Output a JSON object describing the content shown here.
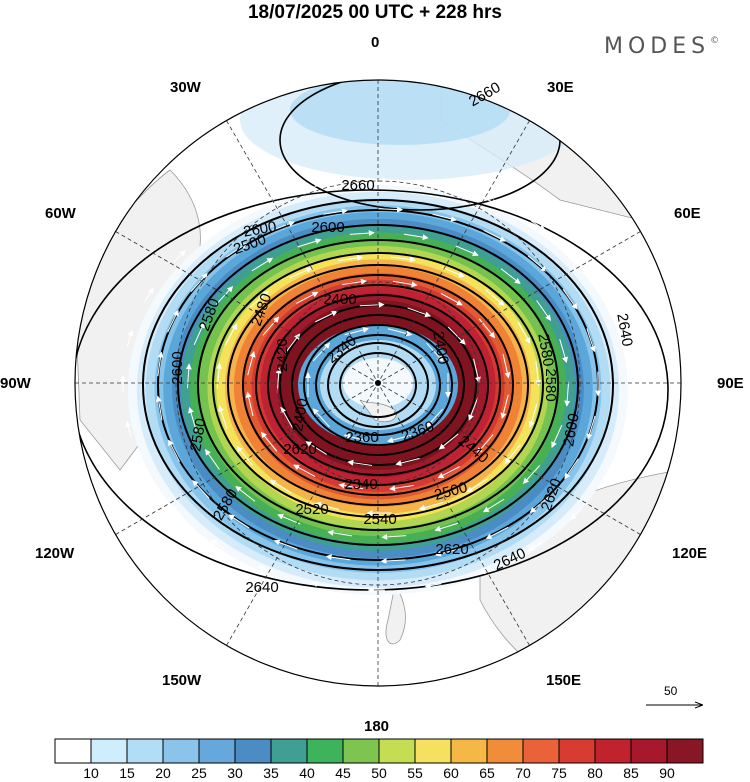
{
  "header": {
    "title": "18/07/2025  00 UTC  + 228 hrs",
    "brand": "MODES",
    "brand_mark": "©"
  },
  "longitude_labels": {
    "0": "0",
    "30E": "30E",
    "60E": "60E",
    "90E": "90E",
    "120E": "120E",
    "150E": "150E",
    "180": "180",
    "150W": "150W",
    "120W": "120W",
    "90W": "90W",
    "60W": "60W",
    "30W": "30W"
  },
  "contour_labels": [
    "2660",
    "2660",
    "2600",
    "2580",
    "2600",
    "2580",
    "2580",
    "2500",
    "2480",
    "2400",
    "2420",
    "2400",
    "2340",
    "2360",
    "2360",
    "2400",
    "2440",
    "2340",
    "2500",
    "2520",
    "2540",
    "2580",
    "2600",
    "2620",
    "2640",
    "2620",
    "2640",
    "2640",
    "2580",
    "2600",
    "2620"
  ],
  "colors": {
    "land": "#f1f1f1",
    "ring": [
      "#f4f9fd",
      "#d7ecfa",
      "#b2dcf4",
      "#86c4ec",
      "#5ba7da",
      "#4a8cc3",
      "#3f9f92",
      "#47b055",
      "#74c351",
      "#b2d650",
      "#f4e25a",
      "#f6b34a",
      "#f08236",
      "#e25a31",
      "#d43a31",
      "#bf2233",
      "#a01a2b",
      "#7f1420"
    ]
  },
  "colorbar": {
    "ticks": [
      "10",
      "15",
      "20",
      "25",
      "30",
      "35",
      "40",
      "45",
      "50",
      "55",
      "60",
      "65",
      "70",
      "75",
      "80",
      "85",
      "90"
    ],
    "colors": [
      "#ffffff",
      "#cfeefd",
      "#b1ddf6",
      "#8ac4ea",
      "#66a7dc",
      "#4a8cc3",
      "#3f9f92",
      "#3db35c",
      "#7ec451",
      "#c4dd52",
      "#f6e060",
      "#f5b746",
      "#f18d3a",
      "#e9623a",
      "#d83c30",
      "#c0232d",
      "#a8182c",
      "#891624"
    ]
  },
  "scale_vector": {
    "label": "50"
  }
}
